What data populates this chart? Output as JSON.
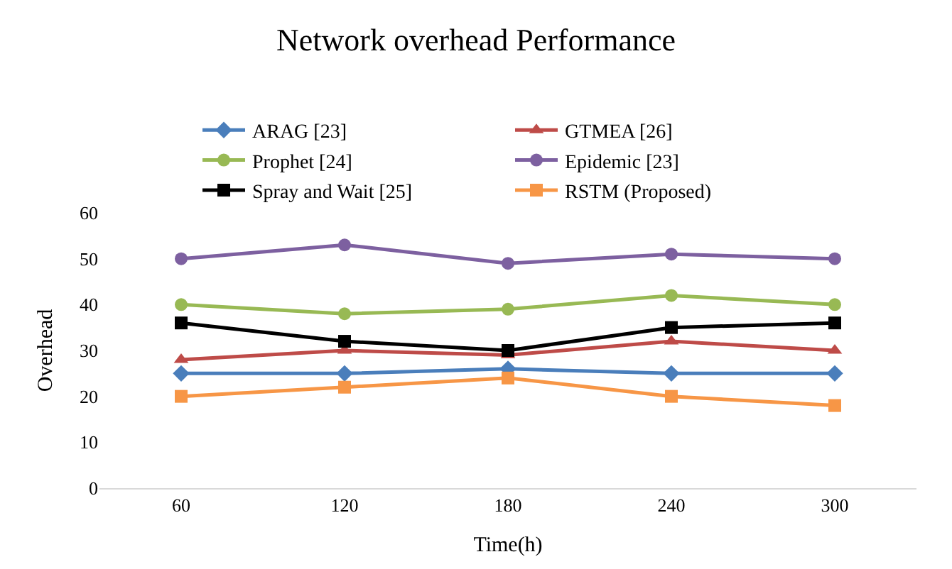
{
  "chart_data": {
    "type": "line",
    "title": "Network overhead Performance",
    "xlabel": "Time(h)",
    "ylabel": "Overhead",
    "categories": [
      "60",
      "120",
      "180",
      "240",
      "300"
    ],
    "series": [
      {
        "name": "ARAG [23]",
        "color": "#4a7ebb",
        "marker": "diamond",
        "values": [
          25,
          25,
          26,
          25,
          25
        ]
      },
      {
        "name": "GTMEA [26]",
        "color": "#be4b48",
        "marker": "triangle",
        "values": [
          28,
          30,
          29,
          32,
          30
        ]
      },
      {
        "name": "Prophet [24]",
        "color": "#98b954",
        "marker": "circle",
        "values": [
          40,
          38,
          39,
          42,
          40
        ]
      },
      {
        "name": "Epidemic [23]",
        "color": "#7d60a0",
        "marker": "circle",
        "values": [
          50,
          53,
          49,
          51,
          50
        ]
      },
      {
        "name": "Spray and Wait [25]",
        "color": "#000000",
        "marker": "square",
        "values": [
          36,
          32,
          30,
          35,
          36
        ]
      },
      {
        "name": "RSTM (Proposed)",
        "color": "#f79646",
        "marker": "square",
        "values": [
          20,
          22,
          24,
          20,
          18
        ]
      }
    ],
    "ylim": [
      0,
      60
    ],
    "yticks": [
      0,
      10,
      20,
      30,
      40,
      50,
      60
    ],
    "grid": false,
    "legend": "top",
    "line_style": "solid"
  }
}
